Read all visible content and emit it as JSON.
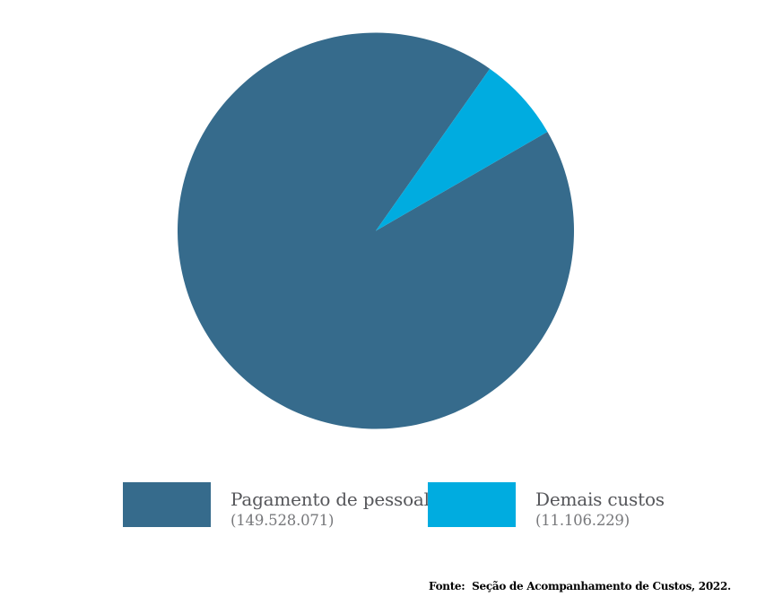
{
  "page": {
    "background_color": "#ffffff"
  },
  "chart_data": {
    "type": "pie",
    "title": "",
    "series": [
      {
        "name": "Pagamento de pessoal",
        "value": 149528071,
        "value_label": "(149.528.071)",
        "color": "#366b8c"
      },
      {
        "name": "Demais custos",
        "value": 11106229,
        "value_label": "(11.106.229)",
        "color": "#00ace0"
      }
    ],
    "start_angle_compass_deg": 60,
    "direction": "clockwise",
    "legend_position": "bottom",
    "data_labels_on_slices": false
  },
  "legend": {
    "items": [
      {
        "label": "Pagamento de pessoal",
        "value_text": "(149.528.071)",
        "color": "#366b8c"
      },
      {
        "label": "Demais custos",
        "value_text": "(11.106.229)",
        "color": "#00ace0"
      }
    ]
  },
  "footer": {
    "source_text": "Fonte:  Seção de Acompanhamento de Custos, 2022."
  }
}
